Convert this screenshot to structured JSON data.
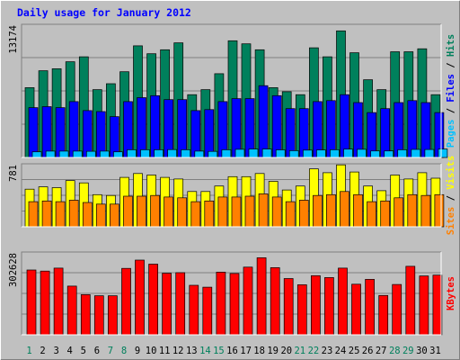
{
  "chart_data": {
    "type": "bar",
    "title": "Daily usage for January 2012",
    "categories": [
      "1",
      "2",
      "3",
      "4",
      "5",
      "6",
      "7",
      "8",
      "9",
      "10",
      "11",
      "12",
      "13",
      "14",
      "15",
      "16",
      "17",
      "18",
      "19",
      "20",
      "21",
      "22",
      "23",
      "24",
      "25",
      "26",
      "27",
      "28",
      "29",
      "30",
      "31"
    ],
    "weekend_days": [
      "1",
      "7",
      "8",
      "14",
      "15",
      "21",
      "22",
      "28",
      "29"
    ],
    "panels": [
      {
        "name": "pages-files-hits",
        "max_label": "13174",
        "ymax": 13174,
        "series": [
          {
            "name": "Hits",
            "color": "#00805c",
            "values": [
              7000,
              8700,
              8900,
              9600,
              10100,
              6800,
              7400,
              8600,
              11200,
              10400,
              10800,
              11500,
              6300,
              6800,
              8400,
              11700,
              11400,
              10800,
              7000,
              6600,
              6300,
              11000,
              10100,
              12700,
              10500,
              7800,
              6800,
              10600,
              10600,
              10900,
              6300
            ]
          },
          {
            "name": "Files",
            "color": "#0000ff",
            "values": [
              5000,
              5100,
              5000,
              5600,
              4700,
              4600,
              4100,
              5600,
              6000,
              6200,
              5800,
              5800,
              4700,
              4800,
              5600,
              5900,
              5900,
              7200,
              6200,
              4900,
              4900,
              5600,
              5700,
              6300,
              5500,
              4500,
              4900,
              5500,
              5700,
              5500,
              4500
            ]
          },
          {
            "name": "Pages",
            "color": "#00c0ff",
            "values": [
              570,
              640,
              640,
              640,
              620,
              640,
              570,
              780,
              780,
              780,
              790,
              780,
              640,
              610,
              780,
              820,
              850,
              850,
              770,
              690,
              740,
              760,
              780,
              840,
              820,
              660,
              660,
              780,
              810,
              800,
              850
            ]
          }
        ]
      },
      {
        "name": "visits-sites",
        "max_label": "781",
        "ymax": 781,
        "series": [
          {
            "name": "Visits",
            "color": "#ffff00",
            "values": [
              480,
              510,
              500,
              590,
              560,
              410,
              400,
              630,
              680,
              660,
              630,
              610,
              450,
              450,
              520,
              640,
              640,
              680,
              580,
              470,
              520,
              740,
              690,
              790,
              700,
              520,
              460,
              660,
              610,
              690,
              620
            ]
          },
          {
            "name": "Sites",
            "color": "#ff8000",
            "values": [
              320,
              330,
              320,
              340,
              310,
              290,
              290,
              390,
              390,
              400,
              380,
              370,
              320,
              330,
              380,
              380,
              390,
              420,
              380,
              320,
              340,
              400,
              410,
              450,
              410,
              320,
              330,
              370,
              410,
              400,
              410
            ]
          }
        ]
      },
      {
        "name": "kbytes",
        "max_label": "302628",
        "ymax": 302628,
        "series": [
          {
            "name": "KBytes",
            "color": "#ff0000",
            "values": [
              242000,
              238000,
              249000,
              182000,
              150000,
              146000,
              146000,
              248000,
              279000,
              264000,
              230000,
              232000,
              185000,
              178000,
              234000,
              229000,
              253000,
              288000,
              251000,
              210000,
              187000,
              221000,
              214000,
              249000,
              189000,
              207000,
              147000,
              188000,
              256000,
              220000,
              223000
            ]
          }
        ]
      }
    ],
    "right_labels": [
      {
        "parts": [
          {
            "text": "Pages",
            "color": "#00c0ff"
          },
          {
            "text": " / ",
            "color": "#000000"
          },
          {
            "text": "Files",
            "color": "#0000ff"
          },
          {
            "text": " / ",
            "color": "#000000"
          },
          {
            "text": "Hits",
            "color": "#00805c"
          }
        ]
      },
      {
        "parts": [
          {
            "text": "Sites",
            "color": "#ff8000"
          },
          {
            "text": " / ",
            "color": "#000000"
          },
          {
            "text": "Visits",
            "color": "#ffff00"
          }
        ]
      },
      {
        "parts": [
          {
            "text": "KBytes",
            "color": "#ff0000"
          }
        ]
      }
    ],
    "colors": {
      "background": "#c0c0c0",
      "title": "#0000ff",
      "weekday_tick": "#000000",
      "weekend_tick": "#00805c"
    }
  }
}
